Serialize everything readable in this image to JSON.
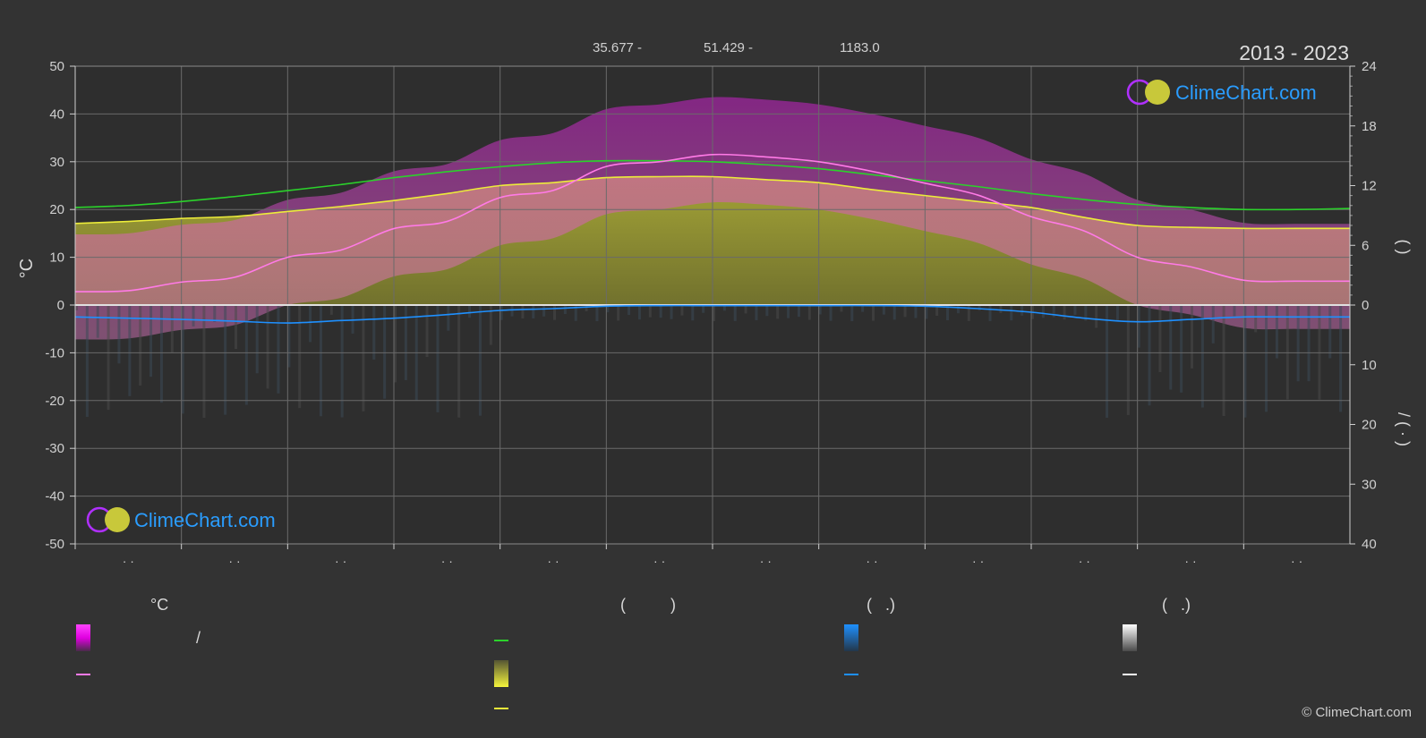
{
  "header": {
    "lat": "35.677 -",
    "lon": "51.429 -",
    "elev": "1183.0",
    "years": "2013 - 2023",
    "brand": "ClimeChart.com",
    "copyright": "© ClimeChart.com"
  },
  "colors": {
    "background": "#333333",
    "temp_range": "#e000e0",
    "daylight": "#2bd22b",
    "sunshine": "#ecec3a",
    "mean_temp": "#ff7ae6",
    "precipitation": "#1e90ff",
    "snow": "#ffffff",
    "brand": "#2a9dff"
  },
  "chart_data": {
    "type": "line",
    "x_tick_labels": [
      "· ·",
      "· ·",
      "· ·",
      "· ·",
      "· ·",
      "· ·",
      "· ·",
      "· ·",
      "· ·",
      "· ·",
      "· ·",
      "· ·"
    ],
    "y_left": {
      "label": "°C",
      "ylim": [
        -50,
        50
      ],
      "ticks": [
        50,
        40,
        30,
        20,
        10,
        0,
        -10,
        -20,
        -30,
        -40,
        -50
      ]
    },
    "y_right_top": {
      "label": "(      )",
      "ylim": [
        0,
        24
      ],
      "ticks": [
        24,
        18,
        12,
        6,
        0
      ]
    },
    "y_right_bottom": {
      "label": "/   (  ·  )",
      "ylim": [
        0,
        40
      ],
      "ticks": [
        0,
        10,
        20,
        30,
        40
      ]
    },
    "grid": true,
    "x": [
      0,
      0.5,
      1,
      1.5,
      2,
      2.5,
      3,
      3.5,
      4,
      4.5,
      5,
      5.5,
      6,
      6.5,
      7,
      7.5,
      8,
      8.5,
      9,
      9.5,
      10,
      10.5,
      11,
      11.5,
      12
    ],
    "series": [
      {
        "key": "daylight",
        "axis": "right_top",
        "values": [
          9.8,
          10.0,
          10.4,
          10.9,
          11.5,
          12.1,
          12.8,
          13.4,
          13.9,
          14.3,
          14.5,
          14.5,
          14.4,
          14.1,
          13.7,
          13.1,
          12.5,
          11.9,
          11.2,
          10.6,
          10.1,
          9.8,
          9.6,
          9.6,
          9.7
        ]
      },
      {
        "key": "sunshine",
        "axis": "right_top",
        "values": [
          8.2,
          8.4,
          8.7,
          8.9,
          9.4,
          9.9,
          10.5,
          11.2,
          12.0,
          12.3,
          12.8,
          12.9,
          12.9,
          12.6,
          12.3,
          11.6,
          11.0,
          10.4,
          9.8,
          8.8,
          8.0,
          7.8,
          7.7,
          7.7,
          7.7
        ]
      },
      {
        "key": "mean_temp",
        "axis": "left",
        "values": [
          2.8,
          3.0,
          4.8,
          5.8,
          10.0,
          11.5,
          16.0,
          17.5,
          22.5,
          24.0,
          29.0,
          30.0,
          31.5,
          31.0,
          30.0,
          28.0,
          25.5,
          23.0,
          18.5,
          15.5,
          10.0,
          8.0,
          5.2,
          5.0,
          5.0
        ]
      },
      {
        "key": "precipitation",
        "axis": "right_bottom",
        "values": [
          2.0,
          2.2,
          2.4,
          2.7,
          3.0,
          2.6,
          2.2,
          1.6,
          0.9,
          0.6,
          0.2,
          0.1,
          0.1,
          0.1,
          0.1,
          0.1,
          0.2,
          0.6,
          1.2,
          2.2,
          2.8,
          2.4,
          2.0,
          2.0,
          2.0
        ]
      }
    ],
    "legend": {
      "headings": [
        "°C",
        "(          )",
        "(   .)",
        "(   .)"
      ],
      "items": [
        {
          "key": "temp_range",
          "label": "/"
        },
        {
          "key": "mean_temp",
          "label": ""
        },
        {
          "key": "daylight",
          "label": ""
        },
        {
          "key": "sunshine_daily",
          "label": ""
        },
        {
          "key": "sunshine",
          "label": ""
        },
        {
          "key": "precip_daily",
          "label": ""
        },
        {
          "key": "precipitation",
          "label": ""
        },
        {
          "key": "snow_daily",
          "label": ""
        },
        {
          "key": "snow",
          "label": ""
        }
      ]
    }
  }
}
